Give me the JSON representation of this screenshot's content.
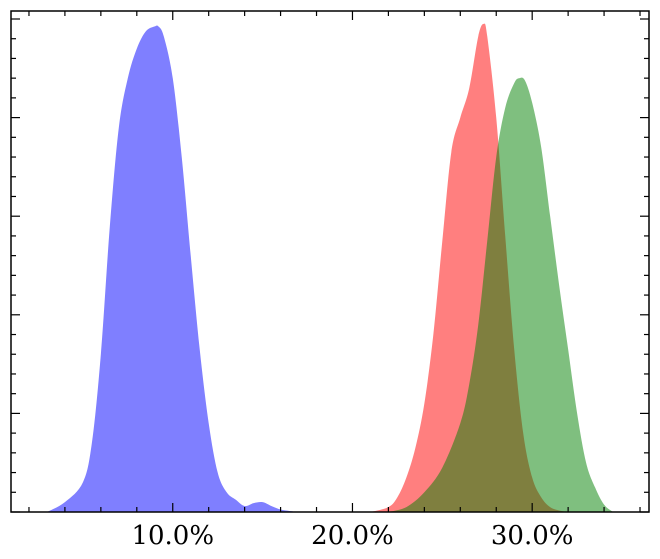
{
  "chart_data": {
    "type": "area",
    "title": "",
    "xlabel": "",
    "ylabel": "",
    "xlim": [
      1.0,
      36.5
    ],
    "ylim": [
      0,
      1.0
    ],
    "grid": false,
    "legend": "none",
    "x_ticks": [
      {
        "value": 10,
        "label": "10.0%"
      },
      {
        "value": 20,
        "label": "20.0%"
      },
      {
        "value": 30,
        "label": "30.0%"
      }
    ],
    "series": [
      {
        "color": "#7f7fff",
        "opacity": 1.0,
        "x": [
          3.0,
          4.0,
          5.0,
          5.5,
          6.0,
          6.5,
          7.0,
          7.5,
          8.0,
          8.5,
          9.0,
          9.2,
          9.5,
          10.0,
          10.5,
          11.0,
          11.5,
          12.0,
          12.5,
          13.0,
          13.5,
          14.0,
          14.5,
          15.0,
          15.5,
          16.0,
          16.5,
          17.0
        ],
        "y": [
          0.0,
          0.02,
          0.06,
          0.14,
          0.32,
          0.58,
          0.78,
          0.88,
          0.94,
          0.975,
          0.985,
          0.985,
          0.965,
          0.88,
          0.72,
          0.52,
          0.33,
          0.18,
          0.08,
          0.04,
          0.025,
          0.012,
          0.018,
          0.02,
          0.012,
          0.005,
          0.002,
          0.0
        ]
      },
      {
        "color": "#ff0000",
        "opacity": 0.5,
        "x": [
          21.0,
          22.0,
          22.5,
          23.0,
          23.5,
          24.0,
          24.5,
          25.0,
          25.5,
          26.0,
          26.5,
          27.0,
          27.3,
          27.5,
          28.0,
          28.5,
          29.0,
          29.5,
          30.0,
          30.5,
          31.0,
          31.5,
          32.0
        ],
        "y": [
          0.0,
          0.01,
          0.03,
          0.07,
          0.13,
          0.22,
          0.36,
          0.55,
          0.73,
          0.8,
          0.86,
          0.965,
          0.99,
          0.965,
          0.8,
          0.56,
          0.33,
          0.16,
          0.07,
          0.03,
          0.01,
          0.003,
          0.0
        ]
      },
      {
        "color": "#008000",
        "opacity": 0.5,
        "x": [
          22.0,
          23.0,
          24.0,
          25.0,
          26.0,
          26.5,
          27.0,
          27.5,
          28.0,
          28.5,
          29.0,
          29.3,
          29.6,
          30.0,
          30.5,
          31.0,
          31.5,
          32.0,
          32.5,
          33.0,
          33.5,
          34.0,
          34.5
        ],
        "y": [
          0.0,
          0.01,
          0.04,
          0.09,
          0.18,
          0.26,
          0.38,
          0.55,
          0.72,
          0.82,
          0.87,
          0.88,
          0.875,
          0.83,
          0.74,
          0.6,
          0.46,
          0.33,
          0.2,
          0.1,
          0.05,
          0.015,
          0.0
        ]
      }
    ]
  }
}
